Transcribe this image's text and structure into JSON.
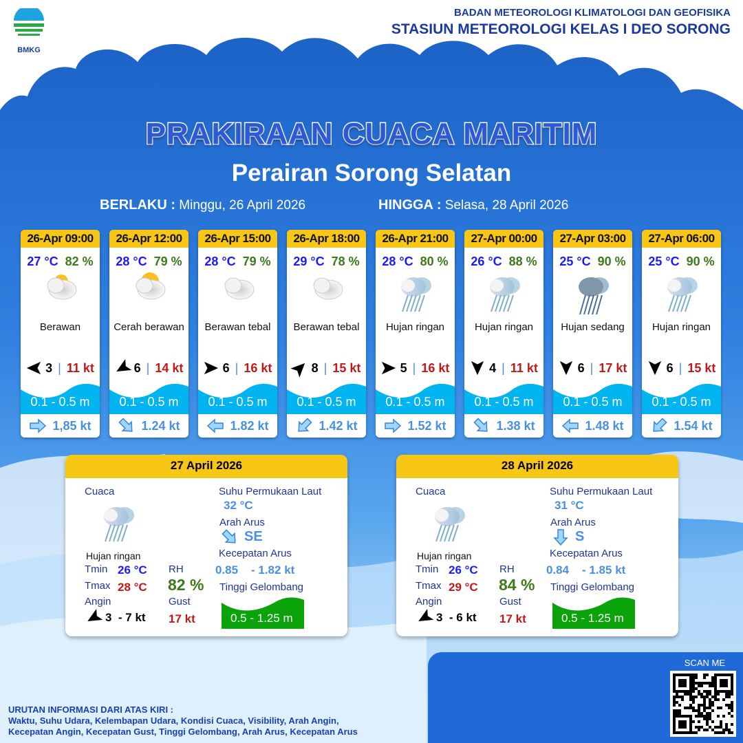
{
  "header": {
    "org_line1": "BADAN METEOROLOGI KLIMATOLOGI DAN GEOFISIKA",
    "org_line2": "STASIUN METEOROLOGI KELAS I DEO SORONG",
    "logo_text": "BMKG"
  },
  "title": "PRAKIRAAN CUACA MARITIM",
  "subtitle": "Perairan Sorong Selatan",
  "validity": {
    "from_label": "BERLAKU :",
    "from": "Minggu, 26 April 2026",
    "to_label": "HINGGA :",
    "to": "Selasa, 28 April 2026"
  },
  "forecasts": [
    {
      "time": "26-Apr 09:00",
      "temp": "27 °C",
      "rh": "82 %",
      "icon": "partly-cloudy-icon",
      "cond": "Berawan",
      "wind_dir_deg": 180,
      "wind": "3",
      "gust": "11 kt",
      "wave": "0.1 - 0.5 m",
      "cur_dir_deg": 0,
      "cur": "1,85 kt"
    },
    {
      "time": "26-Apr 12:00",
      "temp": "28 °C",
      "rh": "79 %",
      "icon": "sunny-cloudy-icon",
      "cond": "Cerah berawan",
      "wind_dir_deg": 150,
      "wind": "6",
      "gust": "14 kt",
      "wave": "0.1 - 0.5 m",
      "cur_dir_deg": 45,
      "cur": "1.24 kt"
    },
    {
      "time": "26-Apr 15:00",
      "temp": "28 °C",
      "rh": "79 %",
      "icon": "cloud-icon",
      "cond": "Berawan tebal",
      "wind_dir_deg": 0,
      "wind": "6",
      "gust": "16 kt",
      "wave": "0.1 - 0.5 m",
      "cur_dir_deg": 180,
      "cur": "1.82 kt"
    },
    {
      "time": "26-Apr 18:00",
      "temp": "29 °C",
      "rh": "78 %",
      "icon": "cloud-icon",
      "cond": "Berawan tebal",
      "wind_dir_deg": -45,
      "wind": "8",
      "gust": "15 kt",
      "wave": "0.1 - 0.5 m",
      "cur_dir_deg": 135,
      "cur": "1.42 kt"
    },
    {
      "time": "26-Apr 21:00",
      "temp": "28 °C",
      "rh": "80 %",
      "icon": "light-rain-icon",
      "cond": "Hujan ringan",
      "wind_dir_deg": 0,
      "wind": "5",
      "gust": "16 kt",
      "wave": "0.1 - 0.5 m",
      "cur_dir_deg": 0,
      "cur": "1.52 kt"
    },
    {
      "time": "27-Apr 00:00",
      "temp": "26 °C",
      "rh": "88 %",
      "icon": "light-rain-icon",
      "cond": "Hujan ringan",
      "wind_dir_deg": 90,
      "wind": "4",
      "gust": "11 kt",
      "wave": "0.1 - 0.5 m",
      "cur_dir_deg": 45,
      "cur": "1.38 kt"
    },
    {
      "time": "27-Apr 03:00",
      "temp": "25 °C",
      "rh": "90 %",
      "icon": "moderate-rain-icon",
      "cond": "Hujan sedang",
      "wind_dir_deg": 90,
      "wind": "6",
      "gust": "17 kt",
      "wave": "0.1 - 0.5 m",
      "cur_dir_deg": 180,
      "cur": "1.48 kt"
    },
    {
      "time": "27-Apr 06:00",
      "temp": "25 °C",
      "rh": "90 %",
      "icon": "light-rain-icon",
      "cond": "Hujan ringan",
      "wind_dir_deg": 90,
      "wind": "6",
      "gust": "15 kt",
      "wave": "0.1 - 0.5 m",
      "cur_dir_deg": 135,
      "cur": "1.54 kt"
    }
  ],
  "labels": {
    "cuaca": "Cuaca",
    "sst": "Suhu Permukaan Laut",
    "arah": "Arah Arus",
    "kec": "Kecepatan Arus",
    "tinggi": "Tinggi Gelombang",
    "tmin": "Tmin",
    "tmax": "Tmax",
    "rh": "RH",
    "angin": "Angin",
    "gust": "Gust"
  },
  "summaries": [
    {
      "date": "27 April 2026",
      "cond": "Hujan ringan",
      "tmin": "26 °C",
      "tmax": "28 °C",
      "rh": "82 %",
      "wind": "3  - 7 kt",
      "wind_dir_deg": 150,
      "gust": "17 kt",
      "sst": "32 °C",
      "cur_dir": "SE",
      "cur_dir_deg": 45,
      "cur_min": "0.85",
      "cur_max": "- 1.82 kt",
      "wave": "0.5 - 1.25 m"
    },
    {
      "date": "28 April 2026",
      "cond": "Hujan ringan",
      "tmin": "26 °C",
      "tmax": "29 °C",
      "rh": "84 %",
      "wind": "3  - 6 kt",
      "wind_dir_deg": 150,
      "gust": "17 kt",
      "sst": "31 °C",
      "cur_dir": "S",
      "cur_dir_deg": 90,
      "cur_min": "0.84",
      "cur_max": "- 1.85 kt",
      "wave": "0.5 - 1.25 m"
    }
  ],
  "footer": {
    "scan": "SCAN ME",
    "note_title": "URUTAN INFORMASI DARI ATAS KIRI :",
    "note_line1": "Waktu, Suhu Udara, Kelembapan Udara, Kondisi Cuaca, Visibility, Arah Angin,",
    "note_line2": "Kecepatan Angin, Kecepatan Gust, Tinggi Gelombang, Arah Arus, Kecepatan Arus"
  },
  "colors": {
    "header_yellow": "#f8c614",
    "temp": "#1a1aff",
    "rh": "#3d7a1c",
    "gust": "#c21818",
    "wave": "#00b4f0",
    "wave_summary": "#0aa30a",
    "current": "#4a8fe0"
  }
}
